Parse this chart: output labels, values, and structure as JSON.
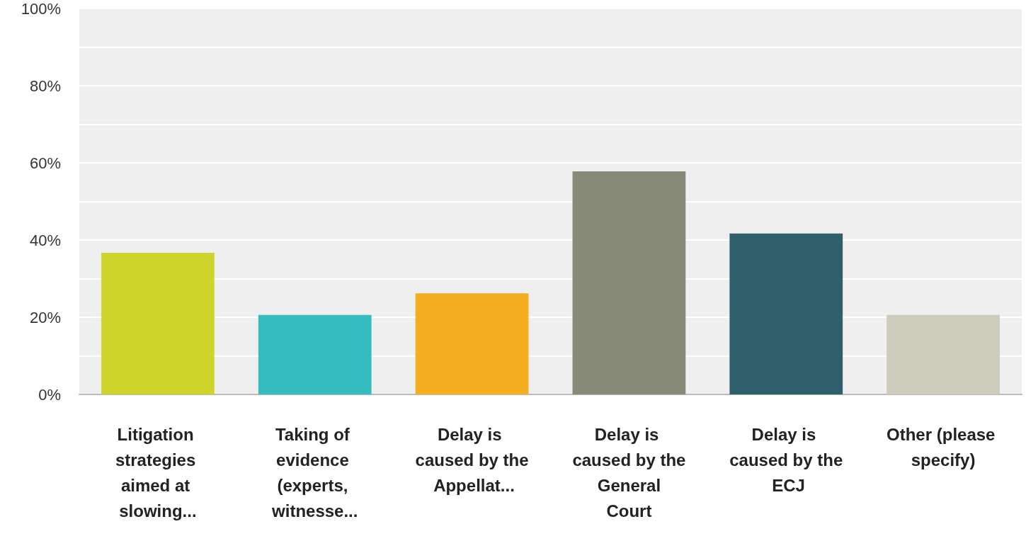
{
  "chart_data": {
    "type": "bar",
    "categories": [
      "Litigation strategies aimed at slowing...",
      "Taking of evidence (experts, witnesse...",
      "Delay is caused by the Appellat...",
      "Delay is caused by the General Court",
      "Delay is caused by the ECJ",
      "Other (please specify)"
    ],
    "values": [
      36.7,
      20.6,
      26.2,
      57.8,
      41.7,
      20.6
    ],
    "colors": [
      "#cfd42a",
      "#33bdbe",
      "#f5ae20",
      "#888a79",
      "#2e5f6b",
      "#cdcbbb"
    ],
    "ylim": [
      0,
      100
    ],
    "yticks": [
      {
        "value": 0,
        "label": "0%"
      },
      {
        "value": 10,
        "label": null
      },
      {
        "value": 20,
        "label": "20%"
      },
      {
        "value": 30,
        "label": null
      },
      {
        "value": 40,
        "label": "40%"
      },
      {
        "value": 50,
        "label": null
      },
      {
        "value": 60,
        "label": "60%"
      },
      {
        "value": 70,
        "label": null
      },
      {
        "value": 80,
        "label": "80%"
      },
      {
        "value": 90,
        "label": null
      },
      {
        "value": 100,
        "label": "100%"
      }
    ],
    "grid": true
  }
}
